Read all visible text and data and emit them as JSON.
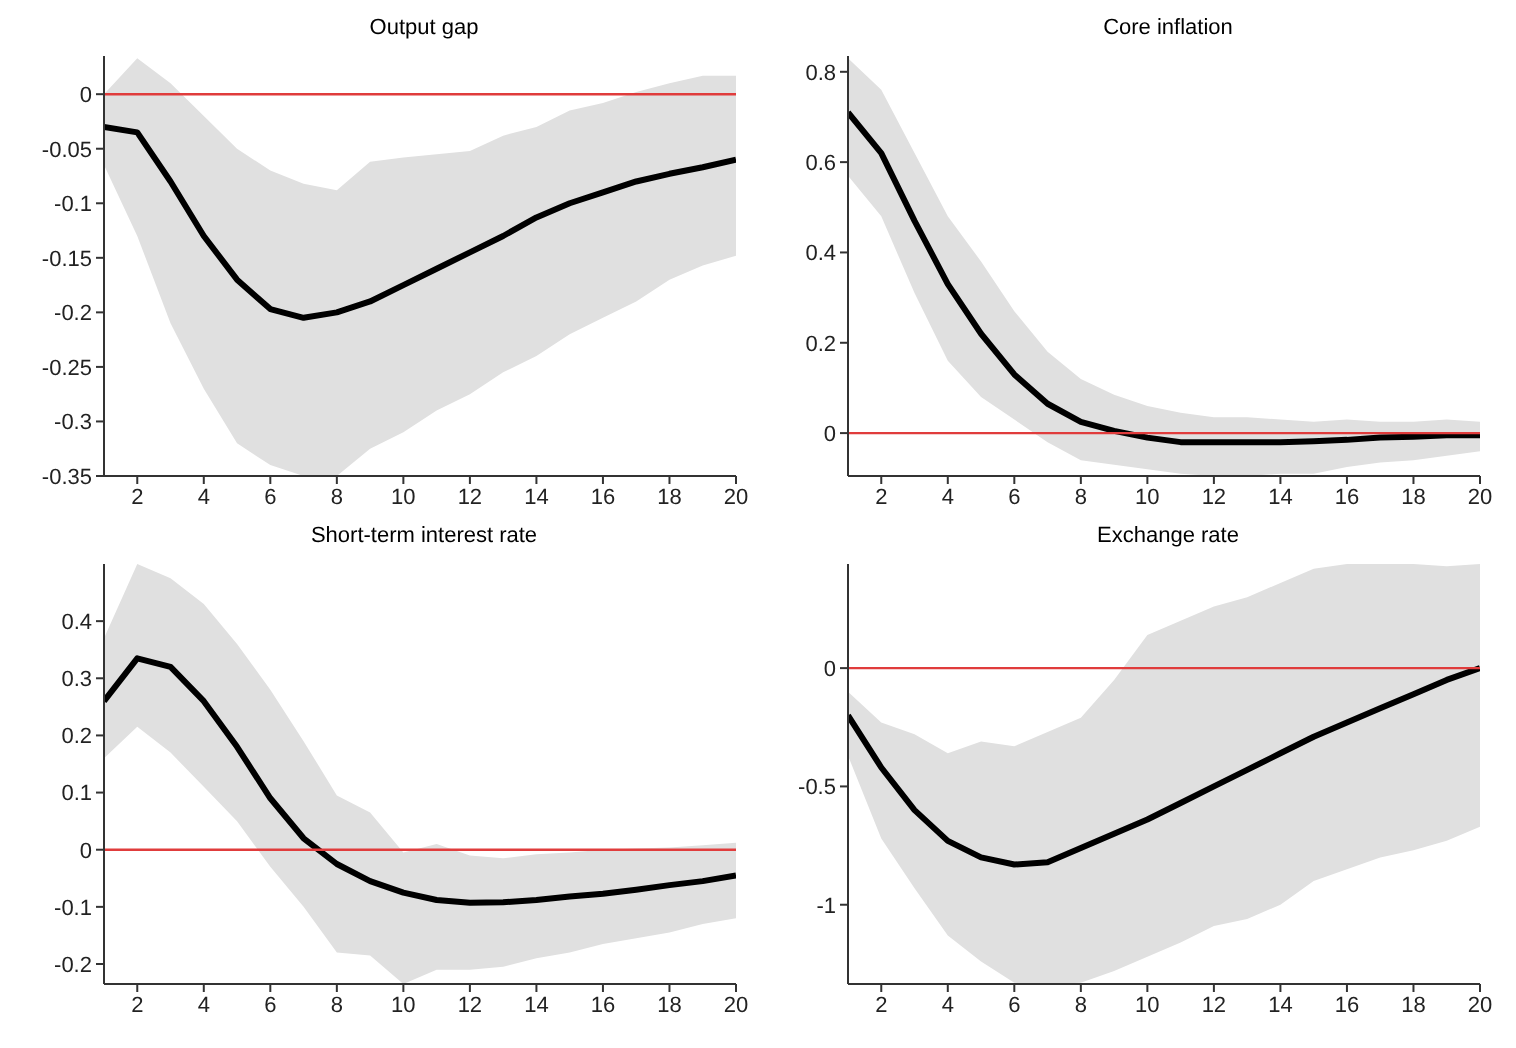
{
  "chart_data": [
    {
      "type": "line",
      "title": "Output gap",
      "x": [
        1,
        2,
        3,
        4,
        5,
        6,
        7,
        8,
        9,
        10,
        11,
        12,
        13,
        14,
        15,
        16,
        17,
        18,
        19,
        20
      ],
      "xlim": [
        1,
        20
      ],
      "xticks": [
        2,
        4,
        6,
        8,
        10,
        12,
        14,
        16,
        18,
        20
      ],
      "ylim": [
        -0.35,
        0.035
      ],
      "yticks": [
        -0.35,
        -0.3,
        -0.25,
        -0.2,
        -0.15,
        -0.1,
        -0.05,
        0
      ],
      "grid": false,
      "legend": false,
      "series": [
        {
          "color": "#000000",
          "values": [
            -0.03,
            -0.035,
            -0.08,
            -0.13,
            -0.17,
            -0.197,
            -0.205,
            -0.2,
            -0.19,
            -0.175,
            -0.16,
            -0.145,
            -0.13,
            -0.113,
            -0.1,
            -0.09,
            -0.08,
            -0.073,
            -0.067,
            -0.06
          ],
          "lower": [
            -0.065,
            -0.13,
            -0.21,
            -0.27,
            -0.32,
            -0.34,
            -0.35,
            -0.35,
            -0.325,
            -0.31,
            -0.29,
            -0.275,
            -0.255,
            -0.24,
            -0.22,
            -0.205,
            -0.19,
            -0.17,
            -0.157,
            -0.148
          ],
          "upper": [
            0,
            0.033,
            0.01,
            -0.02,
            -0.05,
            -0.07,
            -0.082,
            -0.088,
            -0.062,
            -0.058,
            -0.055,
            -0.052,
            -0.038,
            -0.03,
            -0.015,
            -0.008,
            0.002,
            0.01,
            0.017,
            0.017
          ]
        }
      ],
      "ref_lines": [
        {
          "axis": "y",
          "value": 0,
          "color": "#e03c3c"
        }
      ]
    },
    {
      "type": "line",
      "title": "Core inflation",
      "x": [
        1,
        2,
        3,
        4,
        5,
        6,
        7,
        8,
        9,
        10,
        11,
        12,
        13,
        14,
        15,
        16,
        17,
        18,
        19,
        20
      ],
      "xlim": [
        1,
        20
      ],
      "xticks": [
        2,
        4,
        6,
        8,
        10,
        12,
        14,
        16,
        18,
        20
      ],
      "ylim": [
        -0.095,
        0.835
      ],
      "yticks": [
        0,
        0.2,
        0.4,
        0.6,
        0.8
      ],
      "grid": false,
      "legend": false,
      "series": [
        {
          "color": "#000000",
          "values": [
            0.71,
            0.62,
            0.47,
            0.33,
            0.22,
            0.13,
            0.065,
            0.025,
            0.005,
            -0.01,
            -0.02,
            -0.02,
            -0.02,
            -0.02,
            -0.018,
            -0.015,
            -0.01,
            -0.008,
            -0.005,
            -0.005
          ],
          "lower": [
            0.57,
            0.48,
            0.31,
            0.16,
            0.08,
            0.03,
            -0.02,
            -0.06,
            -0.07,
            -0.08,
            -0.09,
            -0.095,
            -0.095,
            -0.09,
            -0.09,
            -0.075,
            -0.065,
            -0.06,
            -0.05,
            -0.04
          ],
          "upper": [
            0.83,
            0.76,
            0.62,
            0.48,
            0.38,
            0.27,
            0.18,
            0.12,
            0.085,
            0.06,
            0.045,
            0.035,
            0.035,
            0.03,
            0.025,
            0.03,
            0.025,
            0.025,
            0.03,
            0.025
          ]
        }
      ],
      "ref_lines": [
        {
          "axis": "y",
          "value": 0,
          "color": "#e03c3c"
        }
      ]
    },
    {
      "type": "line",
      "title": "Short-term interest rate",
      "x": [
        1,
        2,
        3,
        4,
        5,
        6,
        7,
        8,
        9,
        10,
        11,
        12,
        13,
        14,
        15,
        16,
        17,
        18,
        19,
        20
      ],
      "xlim": [
        1,
        20
      ],
      "xticks": [
        2,
        4,
        6,
        8,
        10,
        12,
        14,
        16,
        18,
        20
      ],
      "ylim": [
        -0.235,
        0.5
      ],
      "yticks": [
        -0.2,
        -0.1,
        0,
        0.1,
        0.2,
        0.3,
        0.4
      ],
      "grid": false,
      "legend": false,
      "series": [
        {
          "color": "#000000",
          "values": [
            0.26,
            0.335,
            0.32,
            0.26,
            0.18,
            0.09,
            0.02,
            -0.025,
            -0.055,
            -0.075,
            -0.088,
            -0.093,
            -0.092,
            -0.088,
            -0.082,
            -0.077,
            -0.07,
            -0.062,
            -0.055,
            -0.045
          ],
          "lower": [
            0.16,
            0.215,
            0.17,
            0.11,
            0.05,
            -0.03,
            -0.1,
            -0.18,
            -0.185,
            -0.235,
            -0.21,
            -0.21,
            -0.205,
            -0.19,
            -0.18,
            -0.165,
            -0.155,
            -0.145,
            -0.13,
            -0.12
          ],
          "upper": [
            0.37,
            0.5,
            0.475,
            0.43,
            0.36,
            0.28,
            0.19,
            0.095,
            0.065,
            -0.005,
            0.01,
            -0.01,
            -0.015,
            -0.008,
            -0.005,
            0,
            0.002,
            0.004,
            0.008,
            0.012
          ]
        }
      ],
      "ref_lines": [
        {
          "axis": "y",
          "value": 0,
          "color": "#e03c3c"
        }
      ]
    },
    {
      "type": "line",
      "title": "Exchange rate",
      "x": [
        1,
        2,
        3,
        4,
        5,
        6,
        7,
        8,
        9,
        10,
        11,
        12,
        13,
        14,
        15,
        16,
        17,
        18,
        19,
        20
      ],
      "xlim": [
        1,
        20
      ],
      "xticks": [
        2,
        4,
        6,
        8,
        10,
        12,
        14,
        16,
        18,
        20
      ],
      "ylim": [
        -1.335,
        0.44
      ],
      "yticks": [
        -1,
        -0.5,
        0
      ],
      "grid": false,
      "legend": false,
      "series": [
        {
          "color": "#000000",
          "values": [
            -0.2,
            -0.42,
            -0.6,
            -0.73,
            -0.8,
            -0.83,
            -0.82,
            -0.76,
            -0.7,
            -0.64,
            -0.57,
            -0.5,
            -0.43,
            -0.36,
            -0.29,
            -0.23,
            -0.17,
            -0.11,
            -0.05,
            0
          ],
          "lower": [
            -0.37,
            -0.72,
            -0.93,
            -1.13,
            -1.24,
            -1.33,
            -1.335,
            -1.33,
            -1.28,
            -1.22,
            -1.16,
            -1.09,
            -1.06,
            -1,
            -0.9,
            -0.85,
            -0.8,
            -0.77,
            -0.73,
            -0.67
          ],
          "upper": [
            -0.1,
            -0.23,
            -0.28,
            -0.36,
            -0.31,
            -0.33,
            -0.27,
            -0.21,
            -0.05,
            0.14,
            0.2,
            0.26,
            0.3,
            0.36,
            0.42,
            0.44,
            0.44,
            0.44,
            0.43,
            0.44
          ]
        }
      ],
      "ref_lines": [
        {
          "axis": "y",
          "value": 0,
          "color": "#e03c3c"
        }
      ]
    }
  ]
}
